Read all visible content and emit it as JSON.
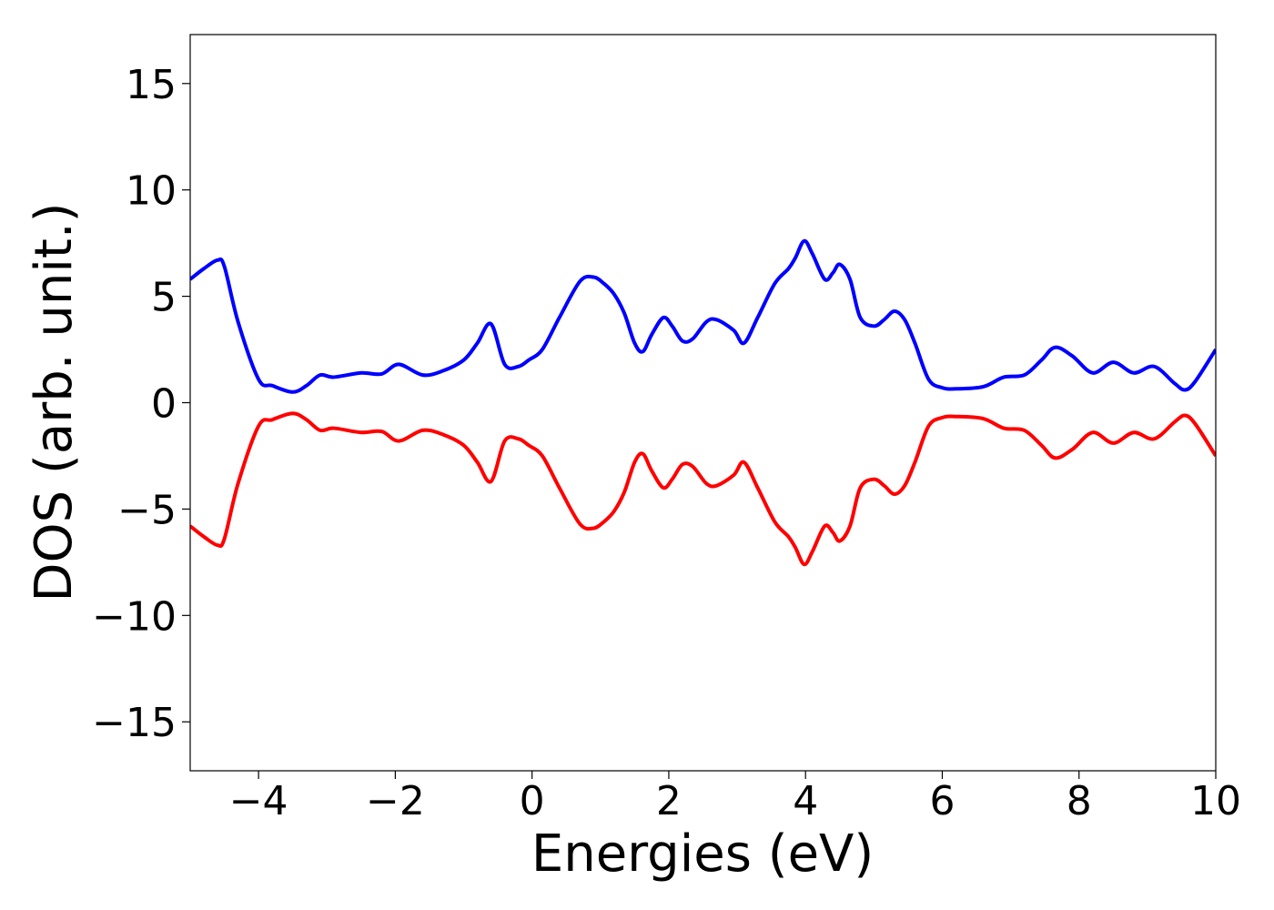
{
  "chart_data": {
    "type": "line",
    "title": "",
    "xlabel": "Energies (eV)",
    "ylabel": "DOS (arb. unit.)",
    "xlim": [
      -5,
      10
    ],
    "ylim": [
      -17.3,
      17.3
    ],
    "grid": false,
    "legend": "none",
    "x_ticks": [
      -4,
      -2,
      0,
      2,
      4,
      6,
      8,
      10
    ],
    "x_tick_labels": [
      "−4",
      "−2",
      "0",
      "2",
      "4",
      "6",
      "8",
      "10"
    ],
    "y_ticks": [
      15,
      10,
      5,
      0,
      -5,
      -10,
      -15
    ],
    "y_tick_labels": [
      "15",
      "10",
      "5",
      "0",
      "−5",
      "−10",
      "−15"
    ],
    "x": [
      -5.0,
      -4.8,
      -4.6,
      -4.5,
      -4.3,
      -4.0,
      -3.8,
      -3.5,
      -3.3,
      -3.1,
      -2.9,
      -2.5,
      -2.2,
      -1.95,
      -1.6,
      -1.3,
      -1.0,
      -0.8,
      -0.6,
      -0.4,
      -0.2,
      -0.05,
      0.15,
      0.4,
      0.7,
      0.9,
      1.05,
      1.2,
      1.35,
      1.5,
      1.62,
      1.75,
      1.92,
      2.05,
      2.2,
      2.35,
      2.55,
      2.7,
      2.95,
      3.1,
      3.3,
      3.55,
      3.75,
      3.85,
      3.98,
      4.1,
      4.28,
      4.4,
      4.5,
      4.65,
      4.8,
      5.0,
      5.15,
      5.3,
      5.45,
      5.6,
      5.8,
      6.0,
      6.2,
      6.6,
      6.9,
      7.2,
      7.45,
      7.65,
      7.9,
      8.2,
      8.5,
      8.8,
      9.1,
      9.4,
      9.55,
      9.7,
      10.0
    ],
    "series": [
      {
        "color": "#0000ff",
        "values": [
          5.8,
          6.3,
          6.7,
          6.4,
          3.8,
          1.1,
          0.8,
          0.5,
          0.8,
          1.3,
          1.2,
          1.4,
          1.35,
          1.8,
          1.3,
          1.5,
          2.0,
          2.8,
          3.7,
          1.8,
          1.7,
          2.0,
          2.5,
          4.0,
          5.7,
          5.9,
          5.6,
          5.1,
          4.2,
          2.8,
          2.4,
          3.2,
          4.0,
          3.6,
          2.9,
          3.0,
          3.8,
          3.9,
          3.4,
          2.8,
          4.0,
          5.6,
          6.3,
          6.8,
          7.6,
          7.0,
          5.8,
          6.1,
          6.5,
          5.8,
          4.0,
          3.6,
          3.9,
          4.3,
          3.9,
          2.8,
          1.1,
          0.7,
          0.65,
          0.75,
          1.2,
          1.3,
          2.0,
          2.6,
          2.2,
          1.4,
          1.9,
          1.4,
          1.7,
          0.9,
          0.6,
          1.0,
          2.5
        ]
      },
      {
        "color": "#ff0000",
        "values": [
          -5.8,
          -6.3,
          -6.7,
          -6.4,
          -3.8,
          -1.1,
          -0.8,
          -0.5,
          -0.8,
          -1.3,
          -1.2,
          -1.4,
          -1.35,
          -1.8,
          -1.3,
          -1.5,
          -2.0,
          -2.8,
          -3.7,
          -1.8,
          -1.7,
          -2.0,
          -2.5,
          -4.0,
          -5.7,
          -5.9,
          -5.6,
          -5.1,
          -4.2,
          -2.8,
          -2.4,
          -3.2,
          -4.0,
          -3.6,
          -2.9,
          -3.0,
          -3.8,
          -3.9,
          -3.4,
          -2.8,
          -4.0,
          -5.6,
          -6.3,
          -6.8,
          -7.6,
          -7.0,
          -5.8,
          -6.1,
          -6.5,
          -5.8,
          -4.0,
          -3.6,
          -3.9,
          -4.3,
          -3.9,
          -2.8,
          -1.1,
          -0.7,
          -0.65,
          -0.75,
          -1.2,
          -1.3,
          -2.0,
          -2.6,
          -2.2,
          -1.4,
          -1.9,
          -1.4,
          -1.7,
          -0.9,
          -0.6,
          -1.0,
          -2.5
        ]
      }
    ]
  }
}
